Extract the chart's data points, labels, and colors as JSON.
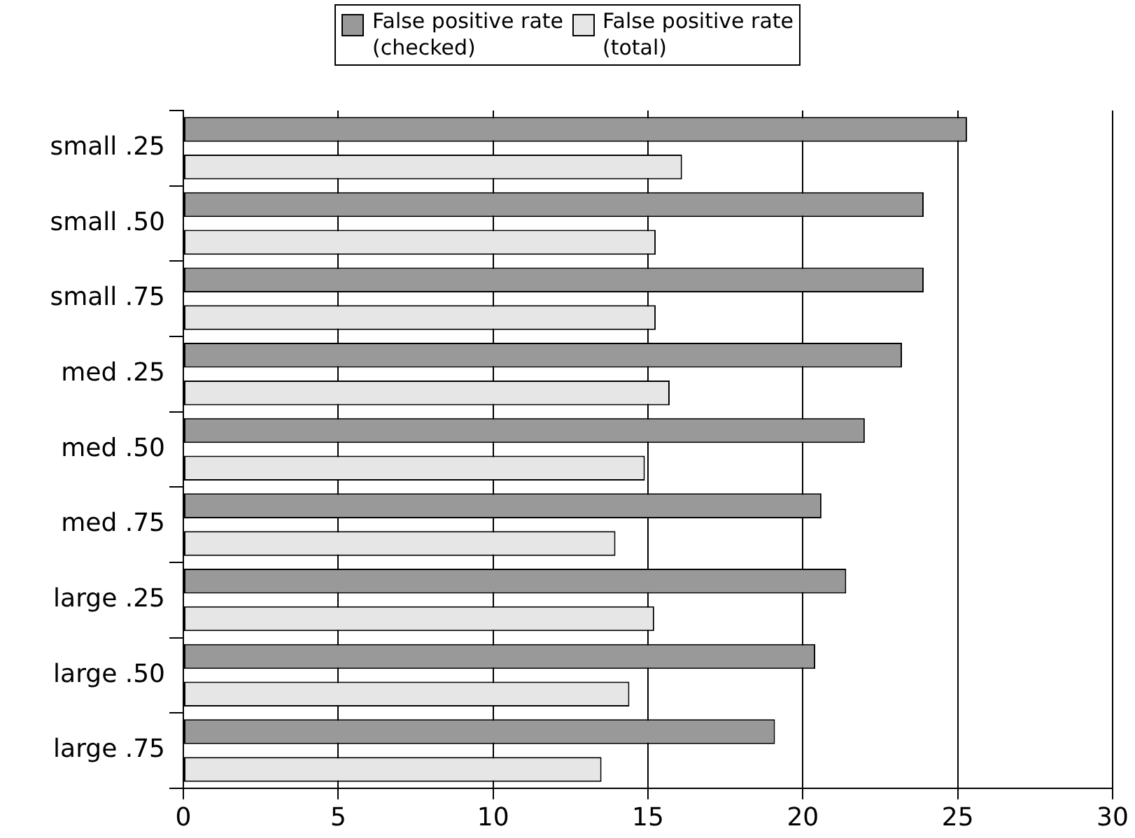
{
  "chart_data": {
    "type": "bar",
    "orientation": "horizontal",
    "categories": [
      "small .25",
      "small .50",
      "small .75",
      "med .25",
      "med .50",
      "med .75",
      "large .25",
      "large .50",
      "large .75"
    ],
    "series": [
      {
        "name": "False positive rate\n(checked)",
        "color": "#999999",
        "values": [
          25.3,
          23.9,
          23.9,
          23.2,
          22.0,
          20.6,
          21.4,
          20.4,
          19.1
        ]
      },
      {
        "name": "False positive rate\n(total)",
        "color": "#e6e6e6",
        "values": [
          16.1,
          15.25,
          15.25,
          15.7,
          14.9,
          13.95,
          15.2,
          14.4,
          13.5
        ]
      }
    ],
    "xlim": [
      0,
      30
    ],
    "xticks": [
      0,
      5,
      10,
      15,
      20,
      25,
      30
    ],
    "grid": "x",
    "legend": "top"
  }
}
